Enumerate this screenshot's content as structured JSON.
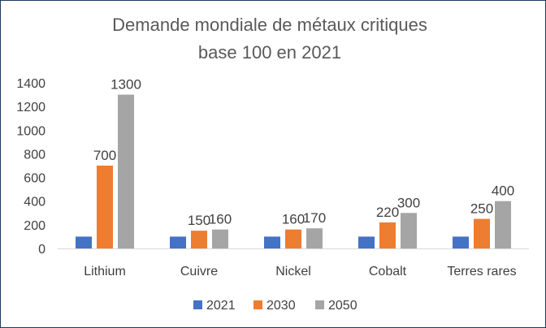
{
  "chart_data": {
    "type": "bar",
    "title": "Demande mondiale de métaux critiques",
    "subtitle": "base 100 en 2021",
    "categories": [
      "Lithium",
      "Cuivre",
      "Nickel",
      "Cobalt",
      "Terres rares"
    ],
    "series": [
      {
        "name": "2021",
        "color": "#4472c4",
        "values": [
          100,
          100,
          100,
          100,
          100
        ],
        "show_labels": false
      },
      {
        "name": "2030",
        "color": "#ed7d31",
        "values": [
          700,
          150,
          160,
          220,
          250
        ],
        "show_labels": true
      },
      {
        "name": "2050",
        "color": "#a5a5a5",
        "values": [
          1300,
          160,
          170,
          300,
          400
        ],
        "show_labels": true
      }
    ],
    "ylim": [
      0,
      1400
    ],
    "yticks": [
      0,
      200,
      400,
      600,
      800,
      1000,
      1200,
      1400
    ],
    "grid": false,
    "legend_position": "bottom"
  }
}
